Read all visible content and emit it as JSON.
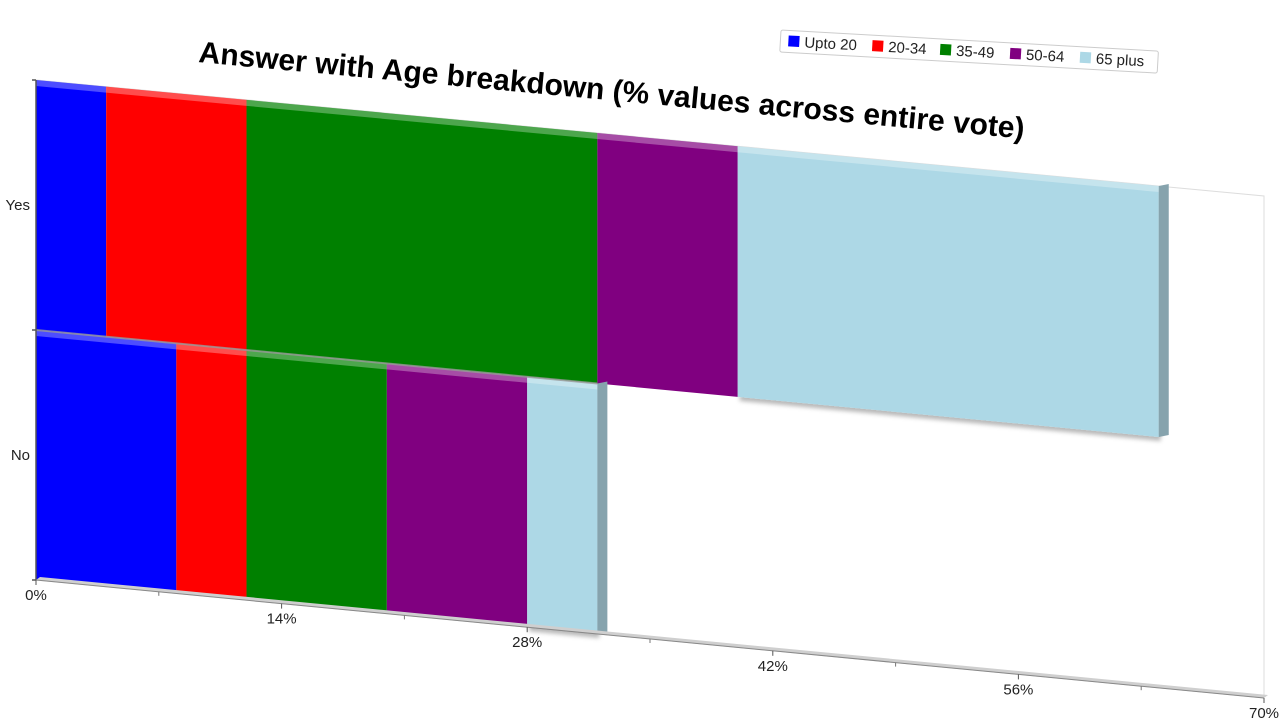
{
  "chart_data": {
    "type": "bar",
    "orientation": "horizontal",
    "stacked": true,
    "title": "Answer with Age breakdown (% values across entire vote)",
    "categories": [
      "Yes",
      "No"
    ],
    "series": [
      {
        "name": "Upto 20",
        "color": "#0000ff",
        "values": [
          4,
          8
        ]
      },
      {
        "name": "20-34",
        "color": "#ff0000",
        "values": [
          8,
          4
        ]
      },
      {
        "name": "35-49",
        "color": "#008000",
        "values": [
          20,
          8
        ]
      },
      {
        "name": "50-64",
        "color": "#800080",
        "values": [
          8,
          8
        ]
      },
      {
        "name": "65 plus",
        "color": "#add8e6",
        "values": [
          24,
          4
        ]
      }
    ],
    "xlim": [
      0,
      70
    ],
    "xticks": [
      "0%",
      "14%",
      "28%",
      "42%",
      "56%",
      "70%"
    ],
    "legend_position": "top-right",
    "grid": false
  }
}
